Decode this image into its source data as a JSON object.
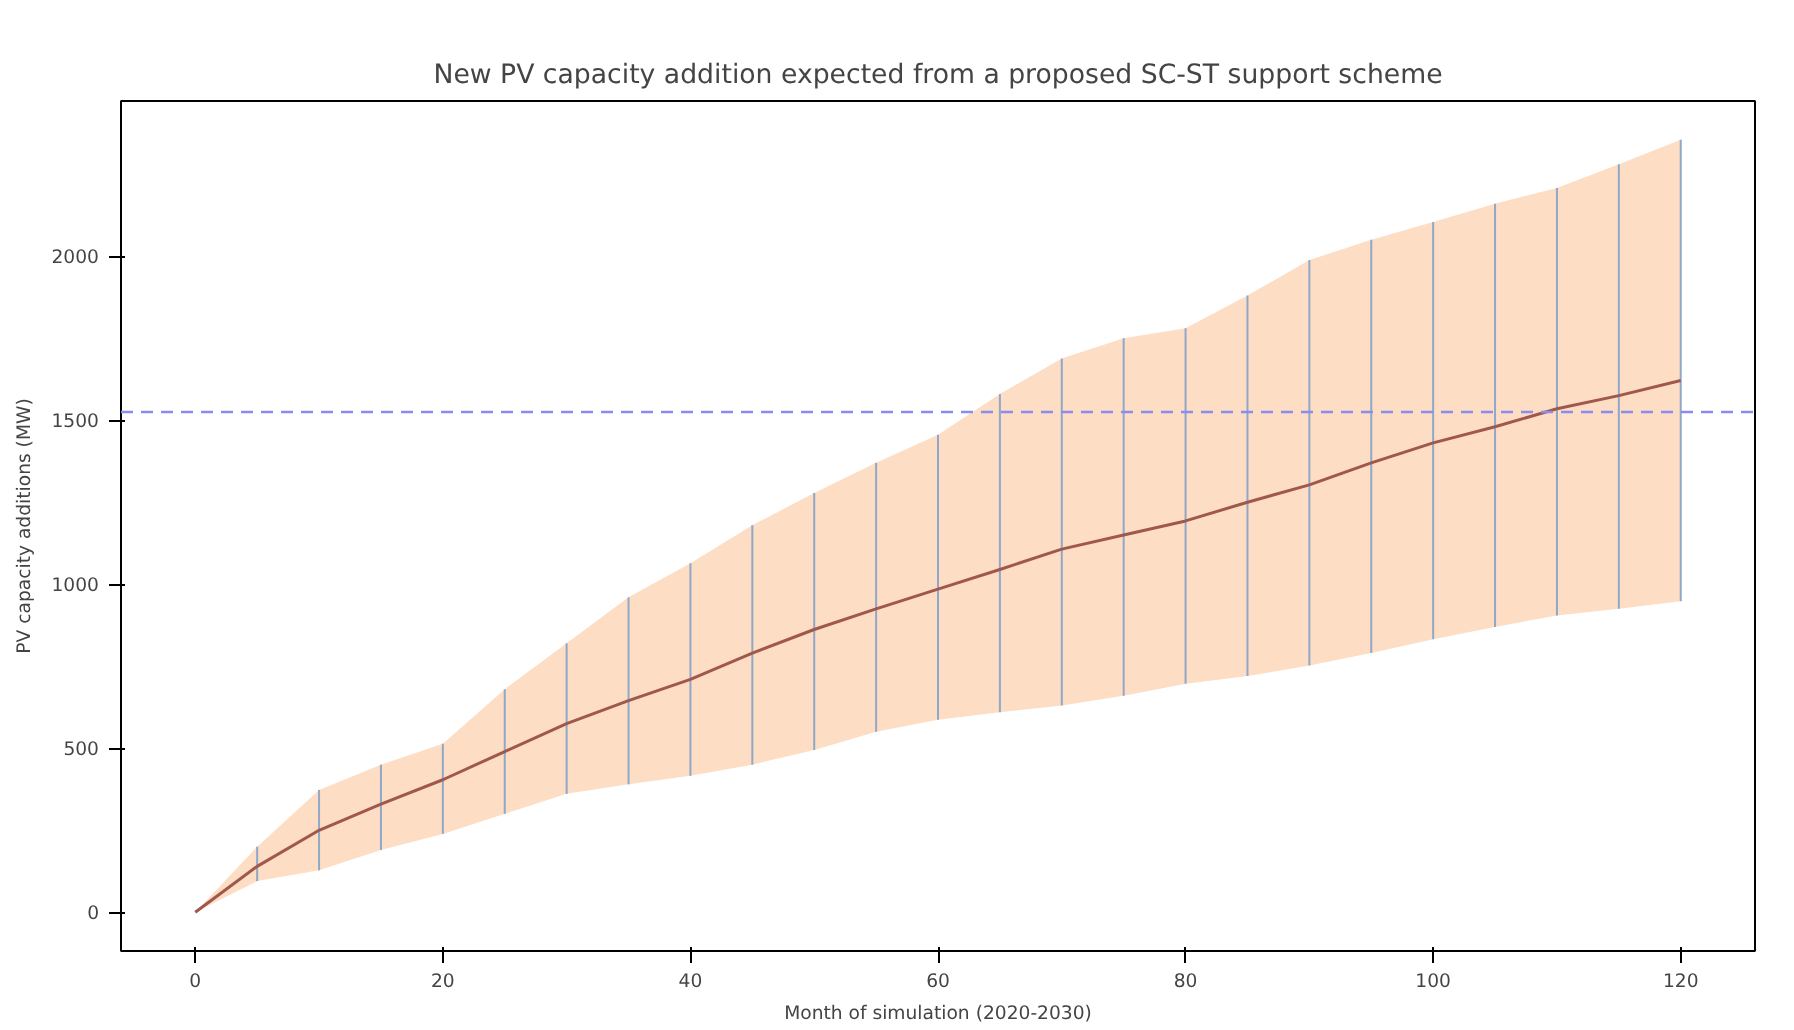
{
  "chart_data": {
    "type": "line",
    "title": "New PV capacity addition expected from a proposed SC-ST support scheme",
    "xlabel": "Month of simulation (2020-2030)",
    "ylabel": "PV capacity additions (MW)",
    "x": [
      0,
      5,
      10,
      15,
      20,
      25,
      30,
      35,
      40,
      45,
      50,
      55,
      60,
      65,
      70,
      75,
      80,
      85,
      90,
      95,
      100,
      105,
      110,
      115,
      120
    ],
    "series": [
      {
        "color": "#a0584a",
        "values": [
          0,
          140,
          250,
          330,
          404,
          490,
          575,
          645,
          710,
          790,
          862,
          925,
          985,
          1045,
          1107,
          1150,
          1193,
          1250,
          1303,
          1370,
          1431,
          1480,
          1535,
          1575,
          1621
        ],
        "lower": [
          0,
          95,
          128,
          190,
          239,
          300,
          361,
          390,
          416,
          450,
          495,
          550,
          587,
          610,
          630,
          660,
          697,
          720,
          752,
          790,
          832,
          870,
          905,
          925,
          948
        ],
        "upper": [
          0,
          200,
          373,
          450,
          514,
          680,
          820,
          960,
          1064,
          1180,
          1278,
          1370,
          1456,
          1580,
          1688,
          1750,
          1780,
          1880,
          1988,
          2050,
          2104,
          2160,
          2208,
          2280,
          2355
        ],
        "errors": [
          [
            0,
            0
          ],
          [
            95,
            200
          ],
          [
            128,
            373
          ],
          [
            190,
            450
          ],
          [
            239,
            514
          ],
          [
            300,
            680
          ],
          [
            361,
            820
          ],
          [
            390,
            960
          ],
          [
            416,
            1064
          ],
          [
            450,
            1180
          ],
          [
            495,
            1278
          ],
          [
            550,
            1370
          ],
          [
            587,
            1456
          ],
          [
            610,
            1580
          ],
          [
            630,
            1688
          ],
          [
            660,
            1750
          ],
          [
            697,
            1780
          ],
          [
            720,
            1880
          ],
          [
            752,
            1988
          ],
          [
            790,
            2050
          ],
          [
            832,
            2104
          ],
          [
            870,
            2160
          ],
          [
            905,
            2208
          ],
          [
            925,
            2280
          ],
          [
            948,
            2355
          ]
        ]
      }
    ],
    "ref_lines": [
      {
        "axis": "y",
        "value": 1525,
        "color": "#8c8cf0",
        "line_style": "dashed"
      }
    ],
    "xlim": [
      -6,
      126
    ],
    "ylim": [
      -118,
      2473
    ],
    "xticks": [
      0,
      20,
      40,
      60,
      80,
      100,
      120
    ],
    "yticks": [
      0,
      500,
      1000,
      1500,
      2000
    ],
    "grid": false
  }
}
